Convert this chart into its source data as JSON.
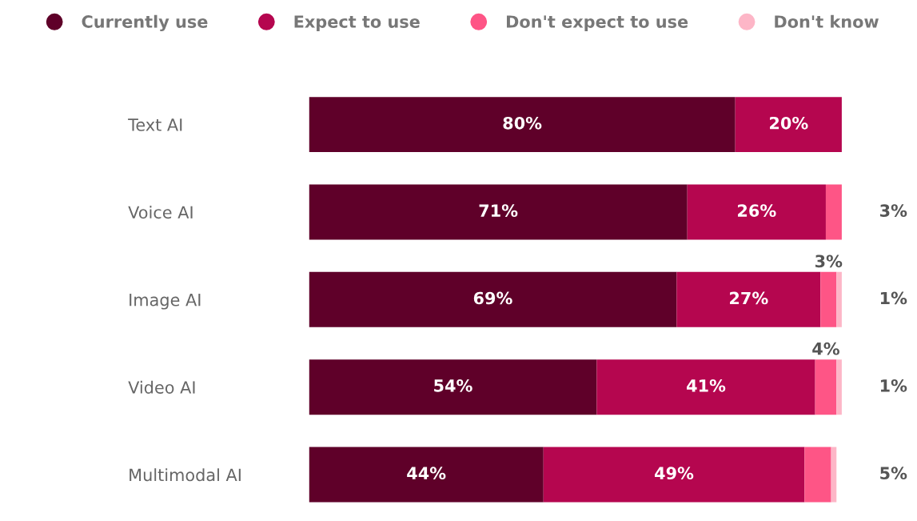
{
  "chart_data": {
    "type": "bar",
    "orientation": "horizontal",
    "stacked": true,
    "legend": "top",
    "categories": [
      "Text AI",
      "Voice AI",
      "Image AI",
      "Video AI",
      "Multimodal AI"
    ],
    "series": [
      {
        "name": "Currently use",
        "color": "#5f0029",
        "values": [
          80,
          71,
          69,
          54,
          44
        ],
        "value_labels": [
          "80%",
          "71%",
          "69%",
          "54%",
          "44%"
        ]
      },
      {
        "name": "Expect to use",
        "color": "#b5064f",
        "values": [
          20,
          26,
          27,
          41,
          49
        ],
        "value_labels": [
          "20%",
          "26%",
          "27%",
          "41%",
          "49%"
        ]
      },
      {
        "name": "Don't expect to use",
        "color": "#fe5586",
        "values": [
          null,
          3,
          3,
          4,
          5
        ],
        "value_labels": [
          null,
          "3%",
          "3%",
          "4%",
          "5%"
        ]
      },
      {
        "name": "Don't know",
        "color": "#fdb6c7",
        "values": [
          null,
          null,
          1,
          1,
          1
        ],
        "value_labels": [
          null,
          null,
          "1%",
          "1%",
          null
        ]
      }
    ]
  }
}
